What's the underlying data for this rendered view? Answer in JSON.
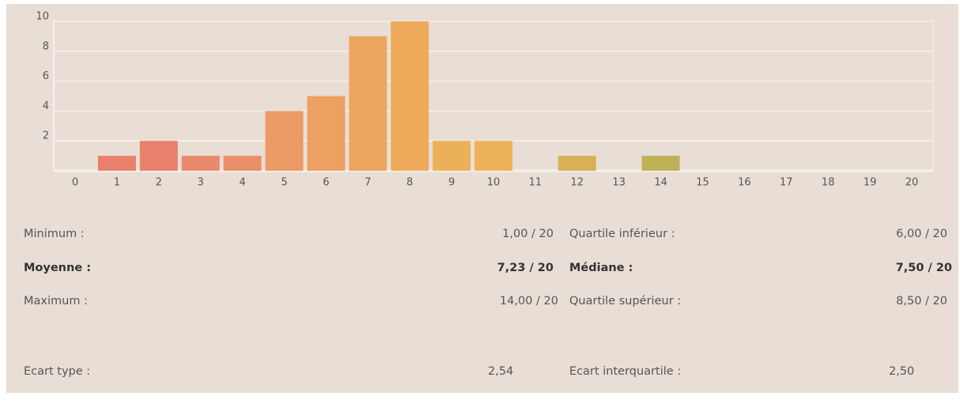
{
  "chart_data": {
    "type": "bar",
    "categories": [
      "0",
      "1",
      "2",
      "3",
      "4",
      "5",
      "6",
      "7",
      "8",
      "9",
      "10",
      "11",
      "12",
      "13",
      "14",
      "15",
      "16",
      "17",
      "18",
      "19",
      "20"
    ],
    "values": [
      0,
      1,
      2,
      1,
      1,
      4,
      5,
      9,
      10,
      2,
      2,
      0,
      1,
      0,
      1,
      0,
      0,
      0,
      0,
      0,
      0
    ],
    "colors": [
      null,
      "#e8806c",
      "#e8806c",
      "#e98a6c",
      "#ea8f6a",
      "#eb9a64",
      "#eca062",
      "#eda65e",
      "#eeab5c",
      "#edb05a",
      "#edb25a",
      null,
      "#d9b056",
      null,
      "#bfb158",
      null,
      null,
      null,
      null,
      null,
      null
    ],
    "ylim": [
      0,
      10
    ],
    "yticks": [
      2,
      4,
      6,
      8,
      10
    ],
    "grid": true
  },
  "stats": {
    "left": [
      {
        "label": "Minimum :",
        "value": "1,00 / 20"
      },
      {
        "label": "Moyenne :",
        "value": "7,23 / 20"
      },
      {
        "label": "Maximum :",
        "value": "14,00 / 20"
      },
      {
        "label": "Ecart type :",
        "value": "2,54"
      }
    ],
    "right": [
      {
        "label": "Quartile inférieur :",
        "value": "6,00 / 20"
      },
      {
        "label": "Médiane :",
        "value": "7,50 / 20"
      },
      {
        "label": "Quartile supérieur :",
        "value": "8,50 / 20"
      },
      {
        "label": "Ecart interquartile :",
        "value": "2,50"
      }
    ]
  }
}
